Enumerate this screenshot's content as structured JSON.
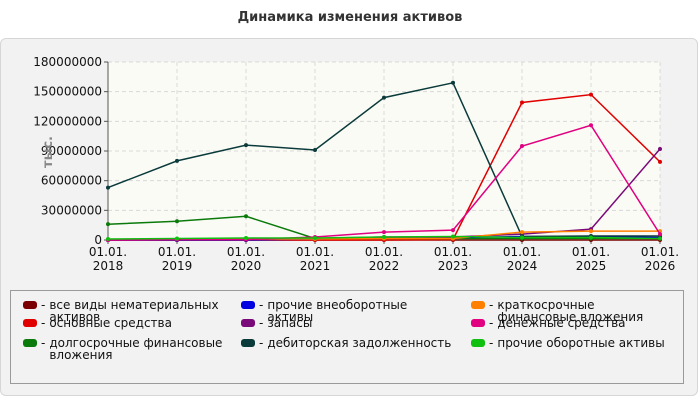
{
  "chart_data": {
    "type": "line",
    "title": "Динамика изменения активов",
    "ylabel": "тыс.",
    "xlabel": "",
    "x": [
      "01.01.\n2018",
      "01.01.\n2019",
      "01.01.\n2020",
      "01.01.\n2021",
      "01.01.\n2022",
      "01.01.\n2023",
      "01.01.\n2024",
      "01.01.\n2025",
      "01.01.\n2026"
    ],
    "ylim": [
      0,
      180000000
    ],
    "yticks": [
      "180000000",
      "150000000",
      "120000000",
      "90000000",
      "60000000",
      "30000000",
      "0"
    ],
    "ytick_values": [
      180000000,
      150000000,
      120000000,
      90000000,
      60000000,
      30000000,
      0
    ],
    "grid": true,
    "legend_position": "bottom",
    "series": [
      {
        "name": "все виды нематериальных активов",
        "color": "#7a0000",
        "values": [
          0,
          0,
          0,
          0,
          0,
          0,
          0,
          0,
          0
        ]
      },
      {
        "name": "основные средства",
        "color": "#e00000",
        "values": [
          0,
          0,
          0,
          0,
          0,
          500000,
          139000000,
          147000000,
          79000000
        ]
      },
      {
        "name": "долгосрочные финансовые вложения",
        "color": "#0a7a0a",
        "values": [
          16000000,
          19000000,
          24000000,
          1500000,
          1500000,
          1500000,
          1500000,
          1500000,
          1500000
        ]
      },
      {
        "name": "прочие внеоборотные активы",
        "color": "#0000e0",
        "values": [
          0,
          0,
          0,
          1000000,
          2000000,
          2500000,
          3500000,
          3500000,
          2500000
        ]
      },
      {
        "name": "запасы",
        "color": "#7a0a7a",
        "values": [
          0,
          500000,
          500000,
          1500000,
          3000000,
          3000000,
          6000000,
          11000000,
          92000000
        ]
      },
      {
        "name": "дебиторская задолженность",
        "color": "#0a3a3a",
        "values": [
          53000000,
          80000000,
          96000000,
          91000000,
          144000000,
          159000000,
          3500000,
          4000000,
          4000000
        ]
      },
      {
        "name": "краткосрочные финансовые вложения",
        "color": "#ff8000",
        "values": [
          500000,
          1000000,
          1000000,
          1000000,
          1500000,
          1500000,
          8000000,
          9000000,
          9000000
        ]
      },
      {
        "name": "денежные средства",
        "color": "#e00080",
        "values": [
          0,
          500000,
          500000,
          3000000,
          8000000,
          10000000,
          95000000,
          116000000,
          6000000
        ]
      },
      {
        "name": "прочие оборотные активы",
        "color": "#10c010",
        "values": [
          1000000,
          1500000,
          2000000,
          2000000,
          3000000,
          3500000,
          2500000,
          2500000,
          1500000
        ]
      }
    ]
  }
}
